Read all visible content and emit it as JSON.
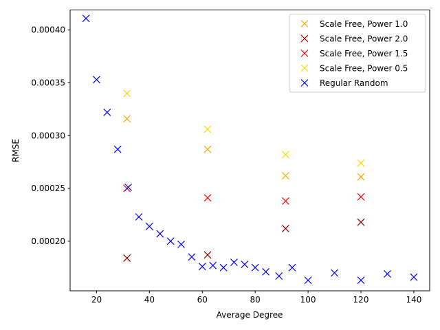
{
  "chart_data": {
    "type": "scatter",
    "title": "",
    "xlabel": "Average Degree",
    "ylabel": "RMSE",
    "xlim": [
      10,
      146
    ],
    "ylim": [
      0.000153,
      0.000419
    ],
    "xticks": [
      20,
      40,
      60,
      80,
      100,
      120,
      140
    ],
    "xtick_labels": [
      "20",
      "40",
      "60",
      "80",
      "100",
      "120",
      "140"
    ],
    "yticks": [
      0.0002,
      0.00025,
      0.0003,
      0.00035,
      0.0004
    ],
    "ytick_labels": [
      "0.00020",
      "0.00025",
      "0.00030",
      "0.00035",
      "0.00040"
    ],
    "grid": false,
    "marker": "x",
    "legend_position": "top-right",
    "series": [
      {
        "name": "Scale Free, Power 1.0",
        "color": "#FFA500",
        "x": [
          31.5,
          62,
          91.5,
          120
        ],
        "y": [
          0.000316,
          0.000287,
          0.000262,
          0.000261
        ]
      },
      {
        "name": "Scale Free, Power 2.0",
        "color": "#8B0000",
        "x": [
          31.5,
          62,
          91.5,
          120
        ],
        "y": [
          0.000184,
          0.000187,
          0.000212,
          0.000218
        ]
      },
      {
        "name": "Scale Free, Power 1.5",
        "color": "#FF0000",
        "x": [
          31.5,
          62,
          91.5,
          120
        ],
        "y": [
          0.00025,
          0.000241,
          0.000238,
          0.000242
        ]
      },
      {
        "name": "Scale Free, Power 0.5",
        "color": "#FFD700",
        "x": [
          31.5,
          62,
          91.5,
          120
        ],
        "y": [
          0.00034,
          0.000306,
          0.000282,
          0.000274
        ]
      },
      {
        "name": "Regular Random",
        "color": "#0000FF",
        "x": [
          16,
          20,
          24,
          28,
          32,
          36,
          40,
          44,
          48,
          52,
          56,
          60,
          64,
          68,
          72,
          76,
          80,
          84,
          89,
          94,
          100,
          110,
          120,
          130,
          140
        ],
        "y": [
          0.000411,
          0.000353,
          0.000322,
          0.000287,
          0.000251,
          0.000223,
          0.000214,
          0.000207,
          0.0002,
          0.000197,
          0.000185,
          0.000176,
          0.000177,
          0.000175,
          0.00018,
          0.000178,
          0.000175,
          0.000171,
          0.000167,
          0.000175,
          0.000163,
          0.00017,
          0.000163,
          0.000169,
          0.000166
        ]
      }
    ]
  }
}
